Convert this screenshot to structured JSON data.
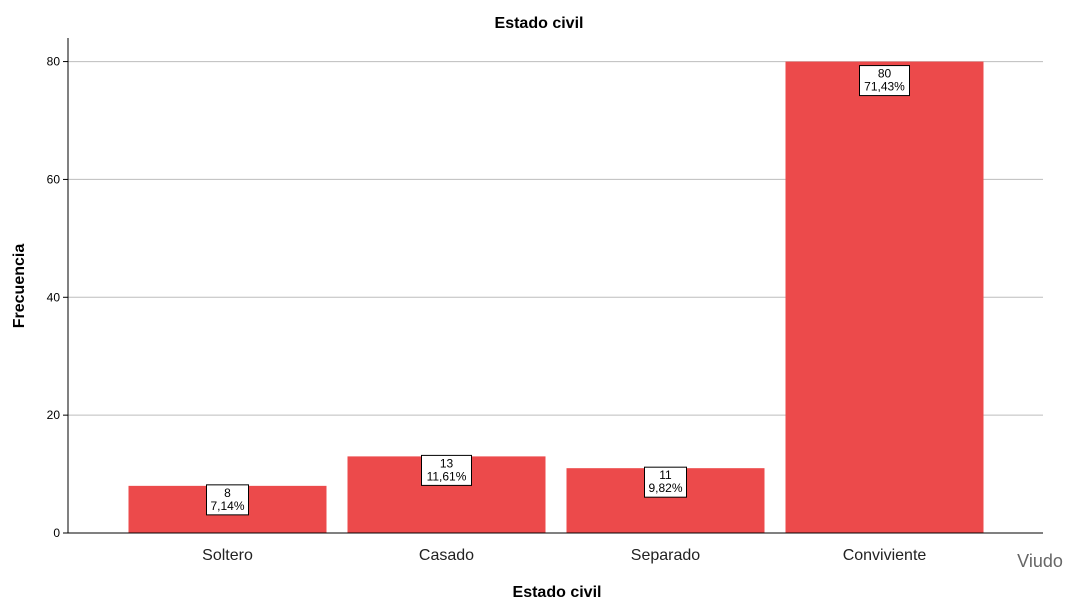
{
  "chart_data": {
    "type": "bar",
    "title": "Estado civil",
    "xlabel": "Estado civil",
    "ylabel": "Frecuencia",
    "categories": [
      "Soltero",
      "Casado",
      "Separado",
      "Conviviente"
    ],
    "values": [
      8,
      13,
      11,
      80
    ],
    "percent_labels": [
      "7,14%",
      "11,61%",
      "9,82%",
      "71,43%"
    ],
    "extra_category_label": "Viudo",
    "yticks": [
      0,
      20,
      40,
      60,
      80
    ],
    "ylim": [
      0,
      84
    ],
    "grid": true,
    "legend": "none",
    "bar_color": "#EC4A4B",
    "grid_color": "#BDBDBD"
  }
}
